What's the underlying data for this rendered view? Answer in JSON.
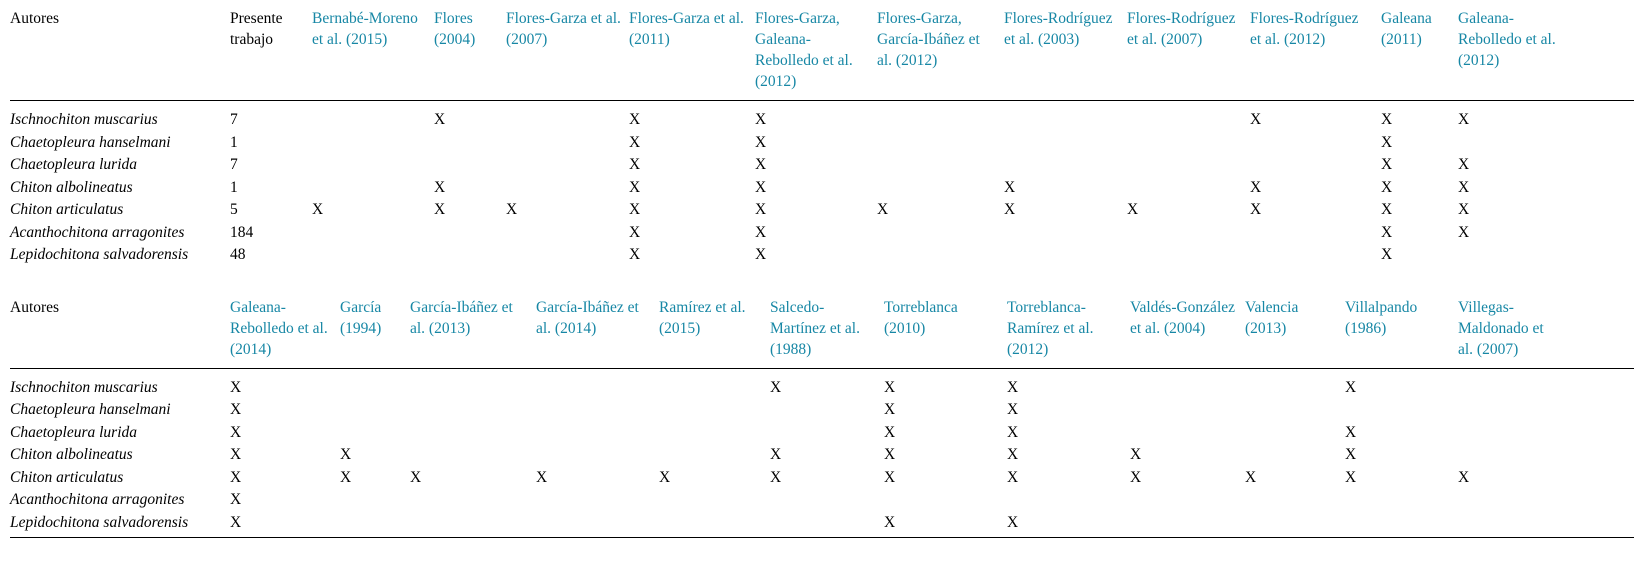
{
  "colors": {
    "citation": "#1787a5",
    "text": "#000000",
    "background": "#ffffff"
  },
  "tables": [
    {
      "name": "species-records-table-part-1",
      "corner_label": "Autores",
      "columns": [
        {
          "label": "Presente trabajo",
          "citation": false
        },
        {
          "label": "Bernabé-Moreno et al. (2015)",
          "citation": true
        },
        {
          "label": "Flores (2004)",
          "citation": true
        },
        {
          "label": "Flores-Garza et al. (2007)",
          "citation": true
        },
        {
          "label": "Flores-Garza et al. (2011)",
          "citation": true
        },
        {
          "label": "Flores-Garza, Galeana-Rebolledo et al. (2012)",
          "citation": true
        },
        {
          "label": "Flores-Garza, García-Ibáñez et al. (2012)",
          "citation": true
        },
        {
          "label": "Flores-Rodríguez et al. (2003)",
          "citation": true
        },
        {
          "label": "Flores-Rodríguez et al. (2007)",
          "citation": true
        },
        {
          "label": "Flores-Rodríguez et al. (2012)",
          "citation": true
        },
        {
          "label": "Galeana (2011)",
          "citation": true
        },
        {
          "label": "Galeana-Rebolledo et al. (2012)",
          "citation": true
        }
      ],
      "rows": [
        {
          "species": "Ischnochiton muscarius",
          "cells": [
            "7",
            "",
            "X",
            "",
            "X",
            "X",
            "",
            "",
            "",
            "X",
            "X",
            "X"
          ]
        },
        {
          "species": "Chaetopleura hanselmani",
          "cells": [
            "1",
            "",
            "",
            "",
            "X",
            "X",
            "",
            "",
            "",
            "",
            "X",
            ""
          ]
        },
        {
          "species": "Chaetopleura lurida",
          "cells": [
            "7",
            "",
            "",
            "",
            "X",
            "X",
            "",
            "",
            "",
            "",
            "X",
            "X"
          ]
        },
        {
          "species": "Chiton albolineatus",
          "cells": [
            "1",
            "",
            "X",
            "",
            "X",
            "X",
            "",
            "X",
            "",
            "X",
            "X",
            "X"
          ]
        },
        {
          "species": "Chiton articulatus",
          "cells": [
            "5",
            "X",
            "X",
            "X",
            "X",
            "X",
            "X",
            "X",
            "X",
            "X",
            "X",
            "X"
          ]
        },
        {
          "species": "Acanthochitona arragonites",
          "cells": [
            "184",
            "",
            "",
            "",
            "X",
            "X",
            "",
            "",
            "",
            "",
            "X",
            "X"
          ]
        },
        {
          "species": "Lepidochitona salvadorensis",
          "cells": [
            "48",
            "",
            "",
            "",
            "X",
            "X",
            "",
            "",
            "",
            "",
            "X",
            ""
          ]
        }
      ]
    },
    {
      "name": "species-records-table-part-2",
      "corner_label": "Autores",
      "columns": [
        {
          "label": "Galeana-Rebolledo et al. (2014)",
          "citation": true
        },
        {
          "label": "García (1994)",
          "citation": true
        },
        {
          "label": "García-Ibáñez et al. (2013)",
          "citation": true
        },
        {
          "label": "García-Ibáñez et al. (2014)",
          "citation": true
        },
        {
          "label": "Ramírez et al. (2015)",
          "citation": true
        },
        {
          "label": "Salcedo-Martínez et al. (1988)",
          "citation": true
        },
        {
          "label": "Torreblanca (2010)",
          "citation": true
        },
        {
          "label": "Torreblanca-Ramírez et al. (2012)",
          "citation": true
        },
        {
          "label": "Valdés-González et al. (2004)",
          "citation": true
        },
        {
          "label": "Valencia (2013)",
          "citation": true
        },
        {
          "label": "Villalpando (1986)",
          "citation": true
        },
        {
          "label": "Villegas-Maldonado et al. (2007)",
          "citation": true
        }
      ],
      "rows": [
        {
          "species": "Ischnochiton muscarius",
          "cells": [
            "X",
            "",
            "",
            "",
            "",
            "X",
            "X",
            "X",
            "",
            "",
            "X",
            ""
          ]
        },
        {
          "species": "Chaetopleura hanselmani",
          "cells": [
            "X",
            "",
            "",
            "",
            "",
            "",
            "X",
            "X",
            "",
            "",
            "",
            ""
          ]
        },
        {
          "species": "Chaetopleura lurida",
          "cells": [
            "X",
            "",
            "",
            "",
            "",
            "",
            "X",
            "X",
            "",
            "",
            "X",
            ""
          ]
        },
        {
          "species": "Chiton albolineatus",
          "cells": [
            "X",
            "X",
            "",
            "",
            "",
            "X",
            "X",
            "X",
            "X",
            "",
            "X",
            ""
          ]
        },
        {
          "species": "Chiton articulatus",
          "cells": [
            "X",
            "X",
            "X",
            "X",
            "X",
            "X",
            "X",
            "X",
            "X",
            "X",
            "X",
            "X"
          ]
        },
        {
          "species": "Acanthochitona arragonites",
          "cells": [
            "X",
            "",
            "",
            "",
            "",
            "",
            "",
            "",
            "",
            "",
            "",
            ""
          ]
        },
        {
          "species": "Lepidochitona salvadorensis",
          "cells": [
            "X",
            "",
            "",
            "",
            "",
            "",
            "X",
            "X",
            "",
            "",
            "",
            ""
          ]
        }
      ]
    }
  ]
}
